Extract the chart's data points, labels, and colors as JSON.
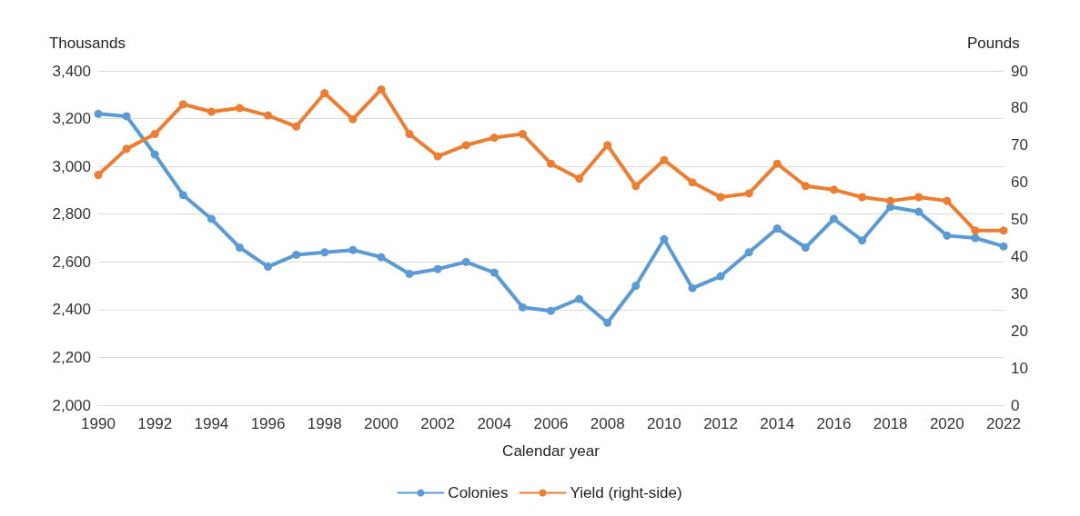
{
  "chart_data": {
    "type": "line",
    "xlabel": "Calendar year",
    "ylabel": "Thousands",
    "y2label": "Pounds",
    "categories": [
      "1990",
      null,
      "1992",
      null,
      "1994",
      null,
      "1996",
      null,
      "1998",
      null,
      "2000",
      null,
      "2002",
      null,
      "2004",
      null,
      "2006",
      null,
      "2008",
      null,
      "2010",
      null,
      "2012",
      null,
      "2014",
      null,
      "2016",
      null,
      "2018",
      null,
      "2020",
      null,
      "2022"
    ],
    "series": [
      {
        "name": "Colonies",
        "color": "#5b9bd5",
        "values": [
          3220,
          3210,
          3050,
          2880,
          2780,
          2660,
          2580,
          2630,
          2640,
          2650,
          2620,
          2550,
          2570,
          2600,
          2555,
          2410,
          2395,
          2445,
          2345,
          2500,
          2695,
          2490,
          2540,
          2640,
          2740,
          2660,
          2780,
          2690,
          2830,
          2810,
          2710,
          2700,
          2665
        ]
      },
      {
        "name": "Yield (right-side)",
        "color": "#ed7d31",
        "axis": "y2",
        "values": [
          62,
          69,
          73,
          81,
          79,
          80,
          78,
          75,
          84,
          77,
          85,
          73,
          67,
          70,
          72,
          73,
          65,
          61,
          70,
          59,
          66,
          60,
          56,
          57,
          65,
          59,
          58,
          56,
          55,
          56,
          55,
          47,
          47
        ]
      }
    ],
    "ylim": [
      2000,
      3400
    ],
    "yticks": [
      {
        "value": 2000,
        "label": "2,000"
      },
      {
        "value": 2200,
        "label": "2,200"
      },
      {
        "value": 2400,
        "label": "2,400"
      },
      {
        "value": 2600,
        "label": "2,600"
      },
      {
        "value": 2800,
        "label": "2,800"
      },
      {
        "value": 3000,
        "label": "3,000"
      },
      {
        "value": 3200,
        "label": "3,200"
      },
      {
        "value": 3400,
        "label": "3,400"
      }
    ],
    "y2lim": [
      0,
      90
    ],
    "y2ticks": [
      0,
      10,
      20,
      30,
      40,
      50,
      60,
      70,
      80,
      90
    ],
    "grid": "y",
    "legend": "bottom",
    "marker": "circle",
    "line_style": "solid"
  }
}
